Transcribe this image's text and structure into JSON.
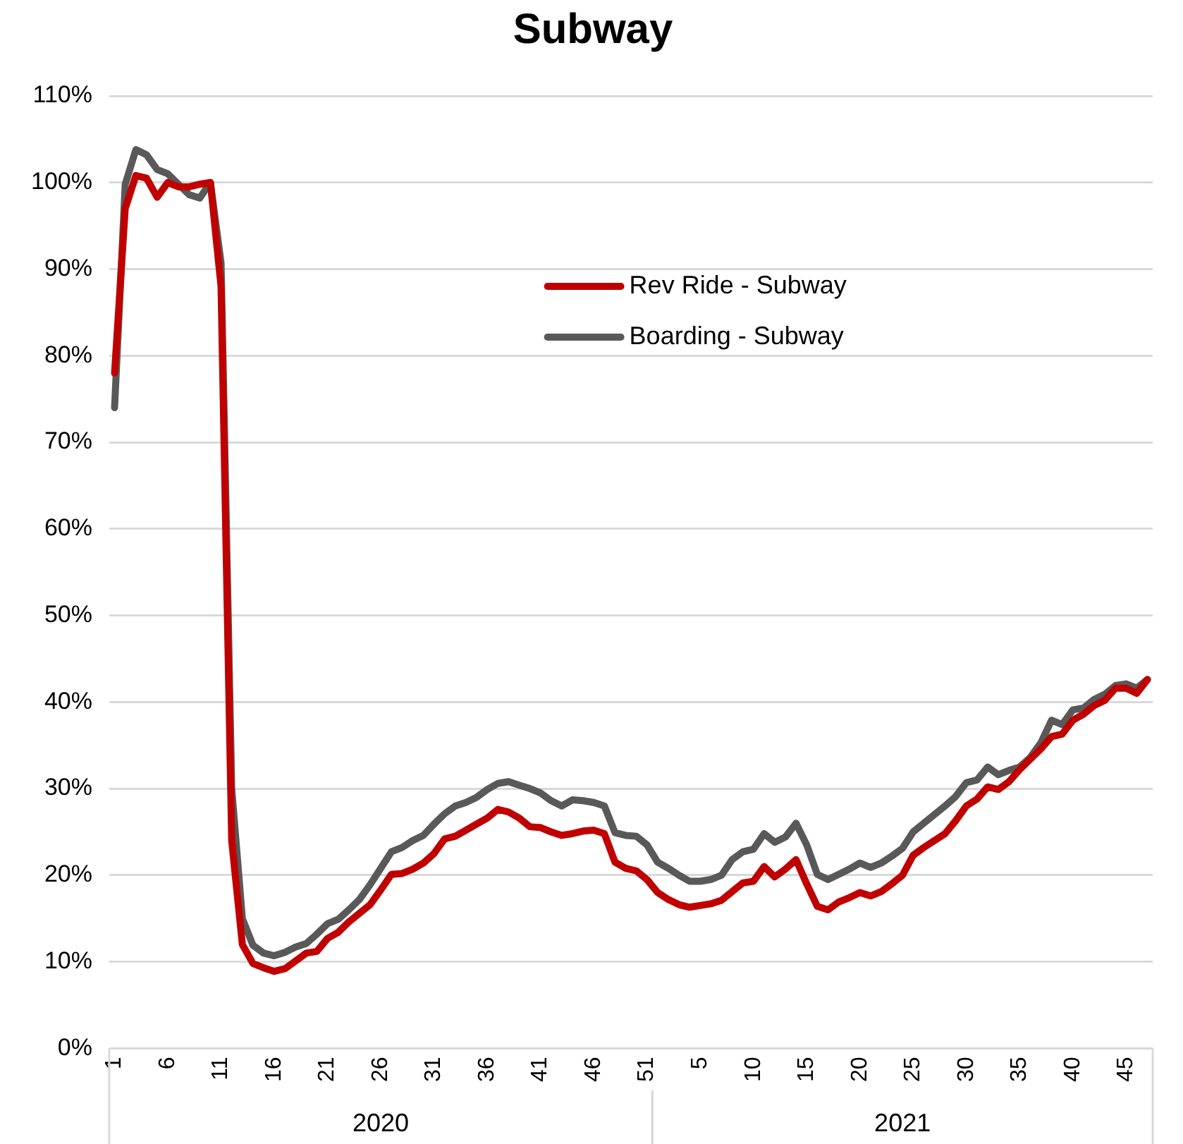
{
  "chart_data": {
    "type": "line",
    "title": "Subway",
    "categories": [
      "1",
      null,
      null,
      null,
      null,
      "6",
      null,
      null,
      null,
      null,
      "11",
      null,
      null,
      null,
      null,
      "16",
      null,
      null,
      null,
      null,
      "21",
      null,
      null,
      null,
      null,
      "26",
      null,
      null,
      null,
      null,
      "31",
      null,
      null,
      null,
      null,
      "36",
      null,
      null,
      null,
      null,
      "41",
      null,
      null,
      null,
      null,
      "46",
      null,
      null,
      null,
      null,
      "51",
      null,
      null,
      null,
      null,
      "5",
      null,
      null,
      null,
      null,
      "10",
      null,
      null,
      null,
      null,
      "15",
      null,
      null,
      null,
      null,
      "20",
      null,
      null,
      null,
      null,
      "25",
      null,
      null,
      null,
      null,
      "30",
      null,
      null,
      null,
      null,
      "35",
      null,
      null,
      null,
      null,
      "40",
      null,
      null,
      null,
      null,
      "45",
      null,
      null
    ],
    "series": [
      {
        "name": "Rev Ride - Subway",
        "color": "#c00000",
        "values": [
          78,
          97,
          100.8,
          100.5,
          98.3,
          100,
          99.5,
          99.5,
          99.8,
          100,
          88,
          24,
          12,
          9.8,
          9.3,
          8.9,
          9.2,
          10.1,
          11,
          11.2,
          12.7,
          13.4,
          14.6,
          15.6,
          16.6,
          18.3,
          20.1,
          20.2,
          20.7,
          21.4,
          22.5,
          24.2,
          24.5,
          25.2,
          25.9,
          26.6,
          27.6,
          27.3,
          26.6,
          25.6,
          25.5,
          25,
          24.6,
          24.8,
          25.1,
          25.2,
          24.8,
          21.5,
          20.8,
          20.5,
          19.5,
          18,
          17.2,
          16.6,
          16.3,
          16.5,
          16.7,
          17.1,
          18.1,
          19.1,
          19.3,
          21,
          19.8,
          20.7,
          21.8,
          19,
          16.4,
          16,
          16.9,
          17.4,
          18,
          17.6,
          18.1,
          19,
          20,
          22.3,
          23.2,
          24,
          24.8,
          26.3,
          28,
          28.8,
          30.2,
          29.9,
          30.8,
          32.2,
          33.4,
          34.6,
          36,
          36.3,
          37.9,
          38.6,
          39.6,
          40.2,
          41.6,
          41.6,
          41,
          42.6
        ]
      },
      {
        "name": "Boarding - Subway",
        "color": "#595959",
        "values": [
          74,
          99.8,
          103.8,
          103.2,
          101.5,
          101,
          99.8,
          98.6,
          98.2,
          100,
          90.7,
          30,
          15,
          11.9,
          11,
          10.7,
          11.1,
          11.7,
          12.1,
          13.2,
          14.4,
          14.9,
          16,
          17.2,
          18.9,
          20.8,
          22.7,
          23.2,
          24,
          24.6,
          25.9,
          27.1,
          28,
          28.4,
          29,
          29.9,
          30.6,
          30.8,
          30.4,
          30,
          29.5,
          28.6,
          28,
          28.7,
          28.6,
          28.4,
          28,
          24.9,
          24.6,
          24.5,
          23.5,
          21.5,
          20.8,
          20,
          19.3,
          19.3,
          19.5,
          20,
          21.8,
          22.7,
          23,
          24.8,
          23.8,
          24.4,
          26,
          23.5,
          20.1,
          19.5,
          20.1,
          20.7,
          21.4,
          20.9,
          21.4,
          22.2,
          23.1,
          25,
          26,
          27,
          28,
          29.1,
          30.7,
          31,
          32.5,
          31.6,
          32.1,
          32.5,
          33.6,
          35.3,
          37.9,
          37.4,
          39.1,
          39.3,
          40.3,
          40.9,
          41.9,
          42.1,
          41.6,
          42.6
        ]
      }
    ],
    "ylim": [
      0,
      110
    ],
    "yticks": [
      {
        "value": 0,
        "label": "0%"
      },
      {
        "value": 10,
        "label": "10%"
      },
      {
        "value": 20,
        "label": "20%"
      },
      {
        "value": 30,
        "label": "30%"
      },
      {
        "value": 40,
        "label": "40%"
      },
      {
        "value": 50,
        "label": "50%"
      },
      {
        "value": 60,
        "label": "60%"
      },
      {
        "value": 70,
        "label": "70%"
      },
      {
        "value": 80,
        "label": "80%"
      },
      {
        "value": 90,
        "label": "90%"
      },
      {
        "value": 100,
        "label": "100%"
      },
      {
        "value": 110,
        "label": "110%"
      }
    ],
    "annotations": [
      "2020",
      "2021"
    ],
    "grid": "y",
    "legend": "top right",
    "marker": "none",
    "line_style": "solid"
  }
}
